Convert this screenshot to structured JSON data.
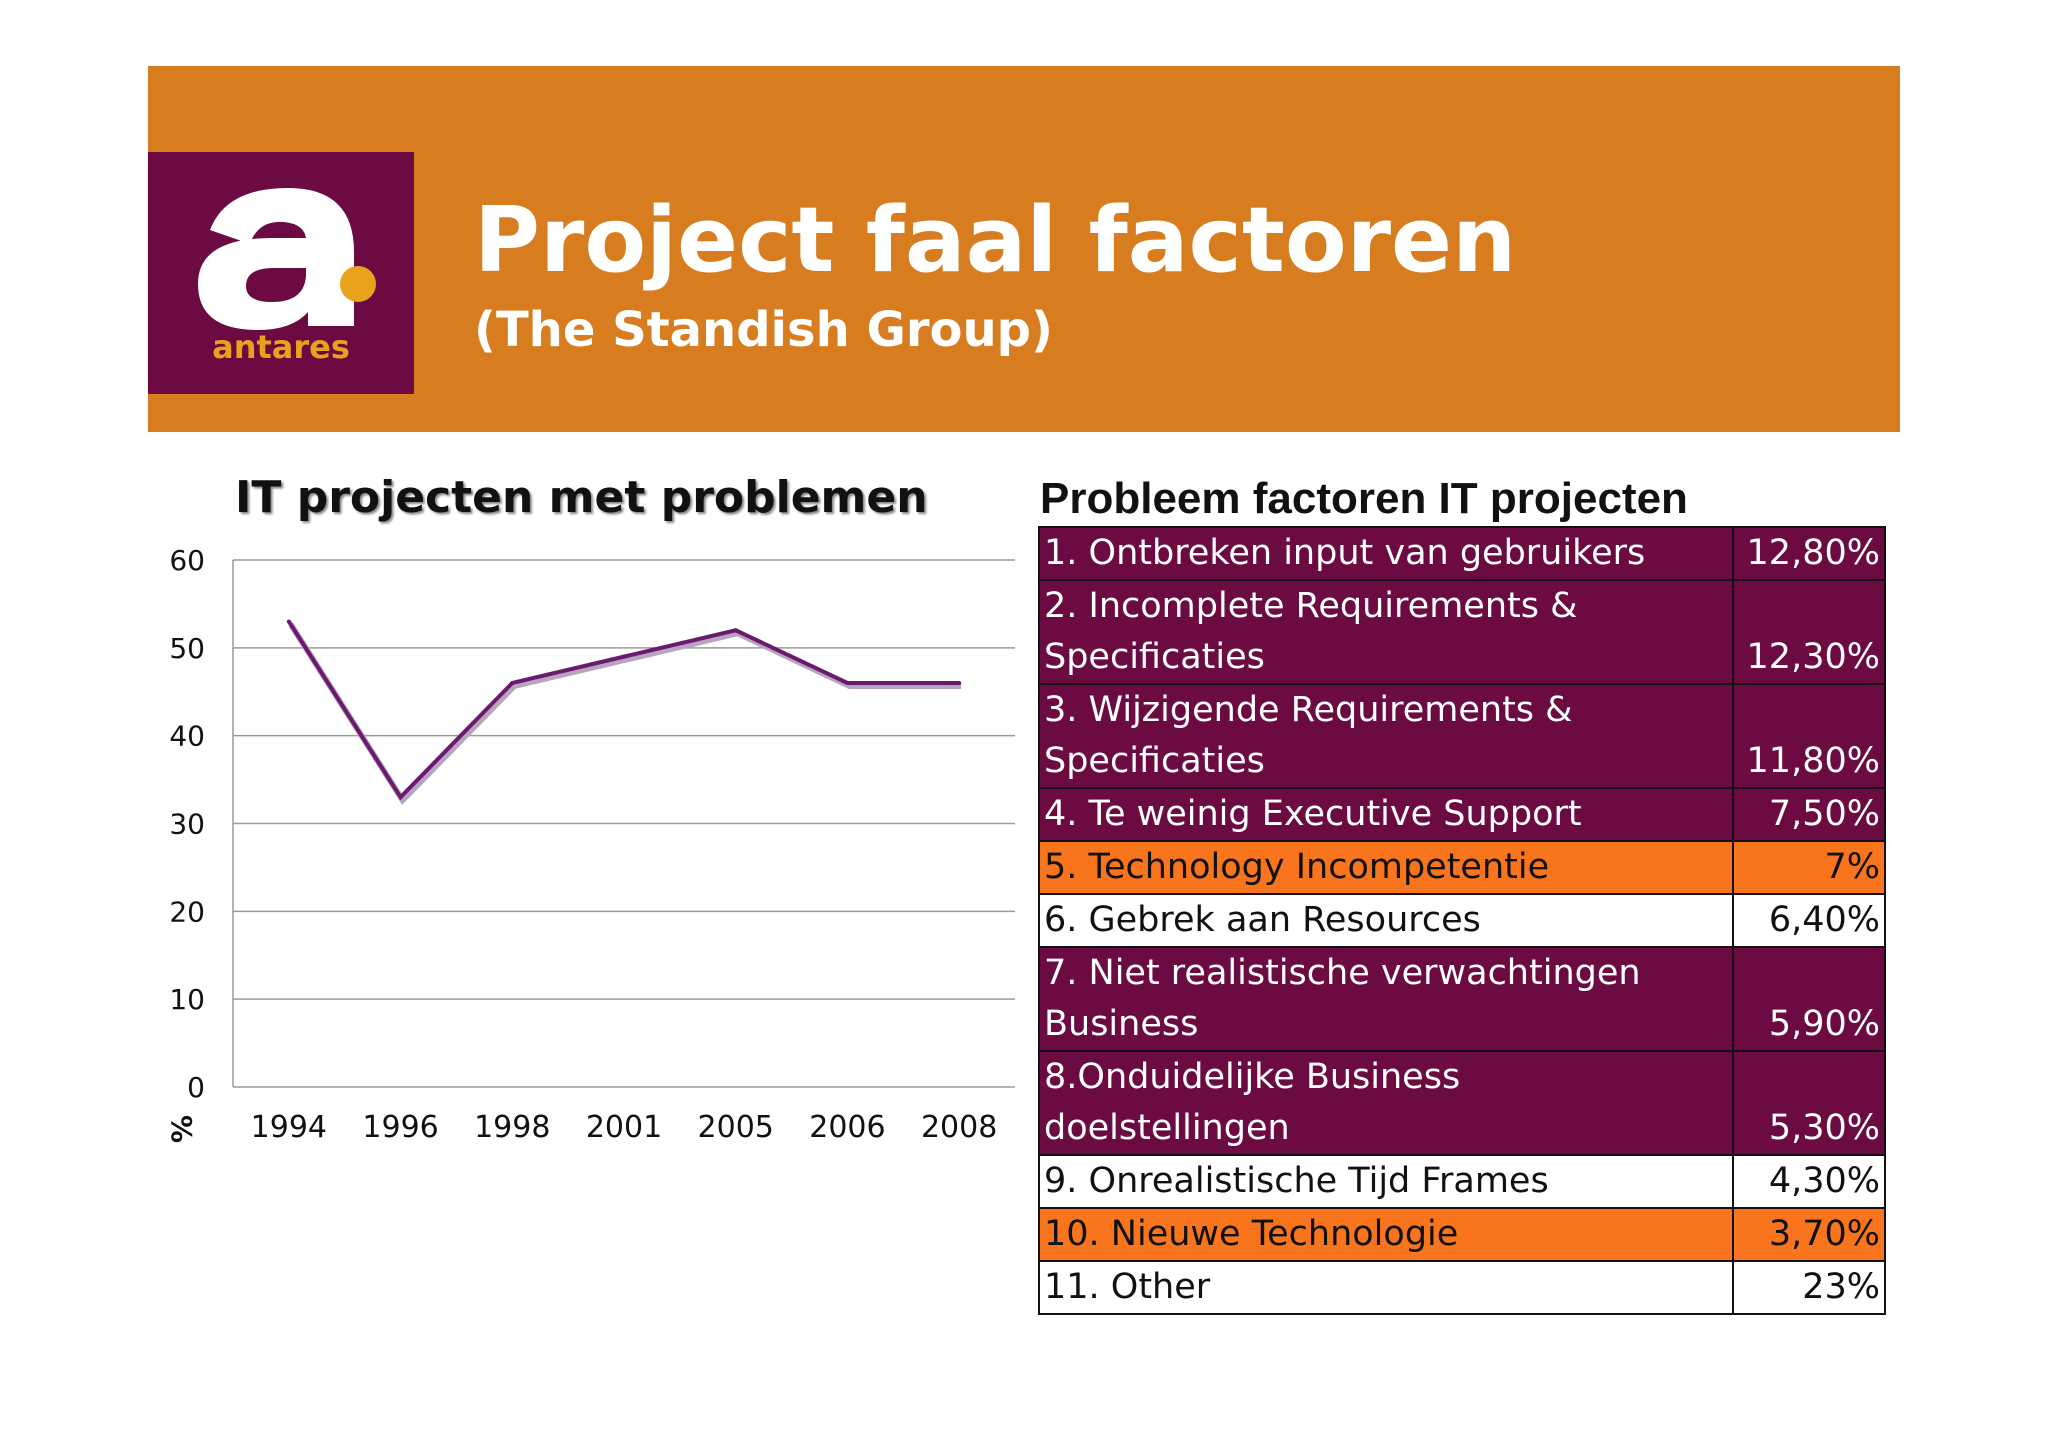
{
  "header": {
    "title": "Project faal factoren",
    "subtitle": "(The Standish Group)",
    "logo_text": "antares",
    "colors": {
      "banner": "#d77d1f",
      "logo_bg": "#6b0b42",
      "logo_dot": "#e8a21c"
    }
  },
  "chart_data": {
    "type": "line",
    "title": "IT projecten met problemen",
    "ylabel": "%",
    "xlabel": "",
    "ylim": [
      0,
      60
    ],
    "yticks": [
      0,
      10,
      20,
      30,
      40,
      50,
      60
    ],
    "categories": [
      "1994",
      "1996",
      "1998",
      "2001",
      "2005",
      "2006",
      "2008"
    ],
    "values": [
      53,
      33,
      46,
      49,
      52,
      46,
      46
    ],
    "grid": true,
    "line_color": "#6b1a6e"
  },
  "table": {
    "title": "Probleem factoren IT projecten",
    "rows": [
      {
        "label": [
          "1. Ontbreken input van gebruikers"
        ],
        "value": "12,80%",
        "style": "purple"
      },
      {
        "label": [
          "2. Incomplete Requirements &",
          "Specificaties"
        ],
        "value": "12,30%",
        "style": "purple"
      },
      {
        "label": [
          "3. Wijzigende Requirements &",
          "Specificaties"
        ],
        "value": "11,80%",
        "style": "purple"
      },
      {
        "label": [
          "4. Te weinig Executive Support"
        ],
        "value": "7,50%",
        "style": "purple"
      },
      {
        "label": [
          "5. Technology Incompetentie"
        ],
        "value": "7%",
        "style": "orange"
      },
      {
        "label": [
          "6. Gebrek aan Resources"
        ],
        "value": "6,40%",
        "style": "white"
      },
      {
        "label": [
          "7. Niet realistische verwachtingen",
          "Business"
        ],
        "value": "5,90%",
        "style": "purple"
      },
      {
        "label": [
          "8.Onduidelijke Business",
          "doelstellingen"
        ],
        "value": "5,30%",
        "style": "purple"
      },
      {
        "label": [
          "9. Onrealistische Tijd Frames"
        ],
        "value": "4,30%",
        "style": "white"
      },
      {
        "label": [
          "10. Nieuwe Technologie"
        ],
        "value": "3,70%",
        "style": "orange"
      },
      {
        "label": [
          "11. Other"
        ],
        "value": "23%",
        "style": "white"
      }
    ]
  }
}
